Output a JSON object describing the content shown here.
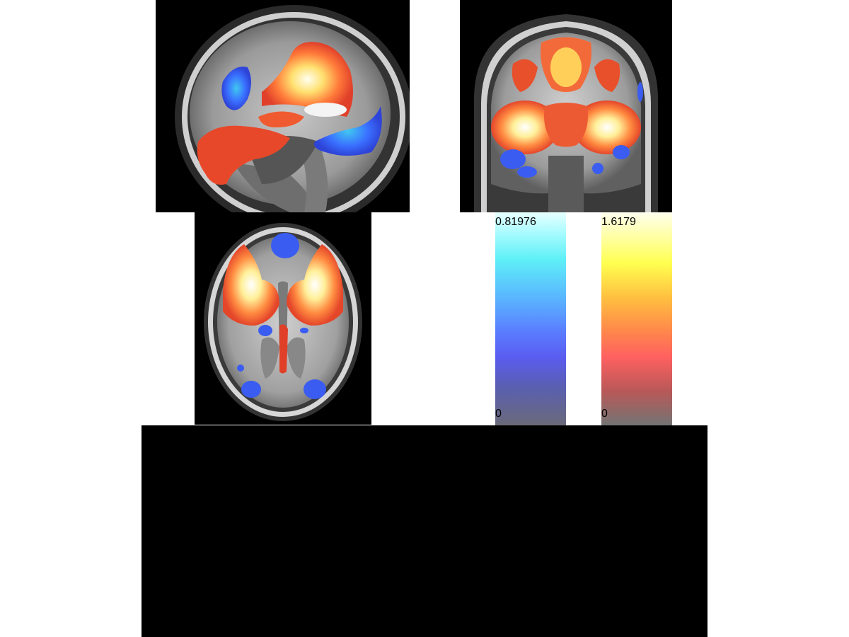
{
  "views": {
    "sagittal": {
      "name": "sagittal-slice"
    },
    "coronal": {
      "name": "coronal-slice"
    },
    "axial": {
      "name": "axial-slice"
    }
  },
  "colorbars": {
    "negative": {
      "max_label": "0.81976",
      "min_label": "0",
      "colormap": "blue-lightblue"
    },
    "positive": {
      "max_label": "1.6179",
      "min_label": "0",
      "colormap": "red-yellow"
    }
  },
  "colors": {
    "background": "#ffffff",
    "panel": "#000000",
    "activation_pos": "#ff5a3c",
    "activation_neg": "#3c5aff"
  }
}
